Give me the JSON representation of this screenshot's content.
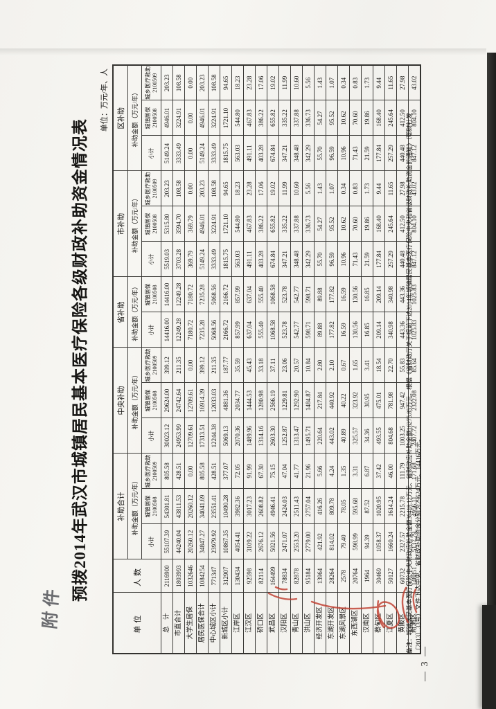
{
  "page": {
    "attachment_note": "附件",
    "page_number": "— 3 —"
  },
  "colors": {
    "paper": "#f6f5f1",
    "ink": "#161513",
    "grid_line": "#3b3a37",
    "stamp_red": "#bf3a2b",
    "scan_edge": "#232321",
    "pencil": "#53555a"
  },
  "doc": {
    "title": "预拨2014年武汉市城镇居民基本医疗保险各级财政补助资金情况表",
    "unit_note": "单位：万元/年、人",
    "footnote_line1": "备注：城镇居民基本医疗保险中央财政应补助金额36418.12万元、省财政应补助金额16275.85万元。根据《省财政厅关于提前下达2014年城镇居民基本医疗保险中央和省级财政补助资金的通知》（鄂财社发",
    "footnote_line2": "〔2013〕33号）文件下达中央、省财政补助资金分别为29624万元、14416万元。"
  },
  "table": {
    "unit_header": "单位",
    "people_header": "人数",
    "amount_label": "补助金额（万元/年）",
    "groups": [
      {
        "name": "补助合计",
        "cols": [
          "小计",
          "城镇居保|2100508",
          "城乡医疗救助|2100509"
        ]
      },
      {
        "name": "中央补助",
        "cols": [
          "小计",
          "城镇居保|2100508",
          "城乡医疗救助|2100509"
        ]
      },
      {
        "name": "省补助",
        "cols": [
          "小计",
          "城镇居保|2100508"
        ]
      },
      {
        "name": "市补助",
        "cols": [
          "小计",
          "城镇居保|2100508",
          "城乡医疗救助|2100509"
        ]
      },
      {
        "name": "区补助",
        "cols": [
          "小计",
          "城镇居保|2100508",
          "城乡医疗救助|2100509"
        ]
      }
    ],
    "rows": [
      {
        "unit": "总　计",
        "people": "2116900",
        "values": [
          "55107.39",
          "54301.81",
          "805.58",
          "30023.12",
          "29624.00",
          "399.12",
          "14416.00",
          "14416.00",
          "5519.03",
          "5315.80",
          "203.23",
          "5149.24",
          "4946.01",
          "203.23"
        ]
      },
      {
        "unit": "市直合计",
        "people": "1803993",
        "values": [
          "44240.04",
          "43811.53",
          "428.51",
          "24953.99",
          "24742.64",
          "211.35",
          "12249.28",
          "12249.28",
          "3703.28",
          "3594.70",
          "108.58",
          "3333.49",
          "3224.91",
          "108.58"
        ]
      },
      {
        "unit": "大学生居保",
        "people": "1032646",
        "values": [
          "20260.12",
          "20260.12",
          "0.00",
          "12709.61",
          "12709.61",
          "0.00",
          "7180.72",
          "7180.72",
          "369.79",
          "369.79",
          "0.00",
          "0.00",
          "0.00",
          "0.00"
        ]
      },
      {
        "unit": "居民医保合计",
        "people": "1084254",
        "values": [
          "34847.27",
          "34041.69",
          "805.58",
          "17313.51",
          "16914.39",
          "399.12",
          "7235.28",
          "7235.28",
          "5149.24",
          "4946.01",
          "203.23",
          "5149.24",
          "4946.01",
          "203.23"
        ]
      },
      {
        "unit": "中心城区小计",
        "people": "771347",
        "values": [
          "23979.92",
          "23551.41",
          "428.51",
          "12244.38",
          "12033.03",
          "211.35",
          "5068.56",
          "5068.56",
          "3333.49",
          "3224.91",
          "108.58",
          "3333.49",
          "3224.91",
          "108.58"
        ]
      },
      {
        "unit": "新城区小计",
        "people": "312907",
        "values": [
          "10867.35",
          "10490.28",
          "377.07",
          "5069.13",
          "4881.36",
          "187.77",
          "2166.72",
          "2166.72",
          "1815.75",
          "1721.10",
          "94.65",
          "1815.75",
          "1721.10",
          "94.65"
        ]
      },
      {
        "unit": "江岸区",
        "people": "130434",
        "values": [
          "4054.41",
          "3982.36",
          "72.05",
          "2070.36",
          "2034.77",
          "35.59",
          "857.99",
          "857.99",
          "563.03",
          "544.80",
          "18.23",
          "563.03",
          "544.80",
          "18.23"
        ]
      },
      {
        "unit": "江汉区",
        "people": "92598",
        "values": [
          "3109.22",
          "3017.23",
          "91.99",
          "1489.96",
          "1444.53",
          "45.43",
          "637.04",
          "637.04",
          "491.11",
          "467.83",
          "23.28",
          "491.11",
          "467.83",
          "23.28"
        ]
      },
      {
        "unit": "硚口区",
        "people": "82114",
        "values": [
          "2676.12",
          "2608.82",
          "67.30",
          "1314.16",
          "1280.98",
          "33.18",
          "555.40",
          "555.40",
          "403.28",
          "386.22",
          "17.06",
          "403.28",
          "386.22",
          "17.06"
        ]
      },
      {
        "unit": "武昌区",
        "people": "164499",
        "values": [
          "5021.56",
          "4946.41",
          "75.15",
          "2603.30",
          "2566.19",
          "37.11",
          "1068.58",
          "1068.58",
          "674.84",
          "655.82",
          "19.02",
          "674.84",
          "655.82",
          "19.02"
        ]
      },
      {
        "unit": "汉阳区",
        "people": "78834",
        "values": [
          "2471.07",
          "2424.03",
          "47.04",
          "1252.87",
          "1229.81",
          "23.06",
          "523.78",
          "523.78",
          "347.21",
          "335.22",
          "11.99",
          "347.21",
          "335.22",
          "11.99"
        ]
      },
      {
        "unit": "青山区",
        "people": "82878",
        "values": [
          "2553.20",
          "2511.43",
          "41.77",
          "1313.47",
          "1292.90",
          "20.57",
          "542.77",
          "542.77",
          "348.48",
          "337.88",
          "10.60",
          "348.48",
          "337.88",
          "10.60"
        ]
      },
      {
        "unit": "洪山区",
        "people": "95184",
        "values": [
          "2779.00",
          "2757.04",
          "21.96",
          "1495.71",
          "1484.87",
          "10.84",
          "598.71",
          "598.71",
          "342.29",
          "336.73",
          "5.56",
          "342.29",
          "336.73",
          "5.56"
        ]
      },
      {
        "unit": "经济开发区",
        "people": "13964",
        "values": [
          "421.92",
          "416.26",
          "5.66",
          "220.64",
          "217.84",
          "2.80",
          "89.88",
          "89.88",
          "55.70",
          "54.27",
          "1.43",
          "55.70",
          "54.27",
          "1.43"
        ]
      },
      {
        "unit": "东湖开发区",
        "people": "28264",
        "values": [
          "814.02",
          "809.78",
          "4.24",
          "443.02",
          "440.92",
          "2.10",
          "177.82",
          "177.82",
          "96.59",
          "95.52",
          "1.07",
          "96.59",
          "95.52",
          "1.07"
        ]
      },
      {
        "unit": "东湖风景区",
        "people": "2578",
        "values": [
          "79.40",
          "78.05",
          "1.35",
          "40.89",
          "40.22",
          "0.67",
          "16.59",
          "16.59",
          "10.96",
          "10.62",
          "0.34",
          "10.96",
          "10.62",
          "0.34"
        ]
      },
      {
        "unit": "东西湖区",
        "people": "20764",
        "values": [
          "598.99",
          "595.68",
          "3.31",
          "325.57",
          "323.92",
          "1.65",
          "130.56",
          "130.56",
          "71.43",
          "70.60",
          "0.83",
          "71.43",
          "70.60",
          "0.83"
        ]
      },
      {
        "unit": "汉南区",
        "people": "1964",
        "values": [
          "94.39",
          "87.52",
          "6.87",
          "34.36",
          "30.95",
          "3.41",
          "16.85",
          "16.85",
          "21.59",
          "19.86",
          "1.73",
          "21.59",
          "19.86",
          "1.73"
        ]
      },
      {
        "unit": "蔡甸区",
        "people": "30469",
        "values": [
          "1058.37",
          "1020.95",
          "37.42",
          "493.55",
          "475.01",
          "18.54",
          "209.14",
          "209.14",
          "177.84",
          "168.40",
          "9.44",
          "177.84",
          "168.40",
          "9.44"
        ]
      },
      {
        "unit": "江夏区",
        "people": "50127",
        "values": [
          "1660.24",
          "1614.24",
          "46.00",
          "804.68",
          "781.98",
          "22.70",
          "340.98",
          "340.98",
          "257.29",
          "245.64",
          "11.65",
          "257.29",
          "245.64",
          "11.65"
        ]
      },
      {
        "unit": "黄陂区",
        "people": "60732",
        "values": [
          "2327.57",
          "2215.78",
          "111.79",
          "1003.25",
          "947.42",
          "55.83",
          "443.36",
          "443.36",
          "440.48",
          "412.50",
          "27.98",
          "440.48",
          "412.50",
          "27.98"
        ]
      },
      {
        "unit": "新洲区",
        "people": "148851",
        "values": [
          "5137.79",
          "4956.11",
          "171.68",
          "2407.72",
          "2322.08",
          "85.64",
          "1025.83",
          "1025.83",
          "847.12",
          "804.10",
          "43.02",
          "847.12",
          "804.10",
          "43.02"
        ]
      }
    ]
  }
}
